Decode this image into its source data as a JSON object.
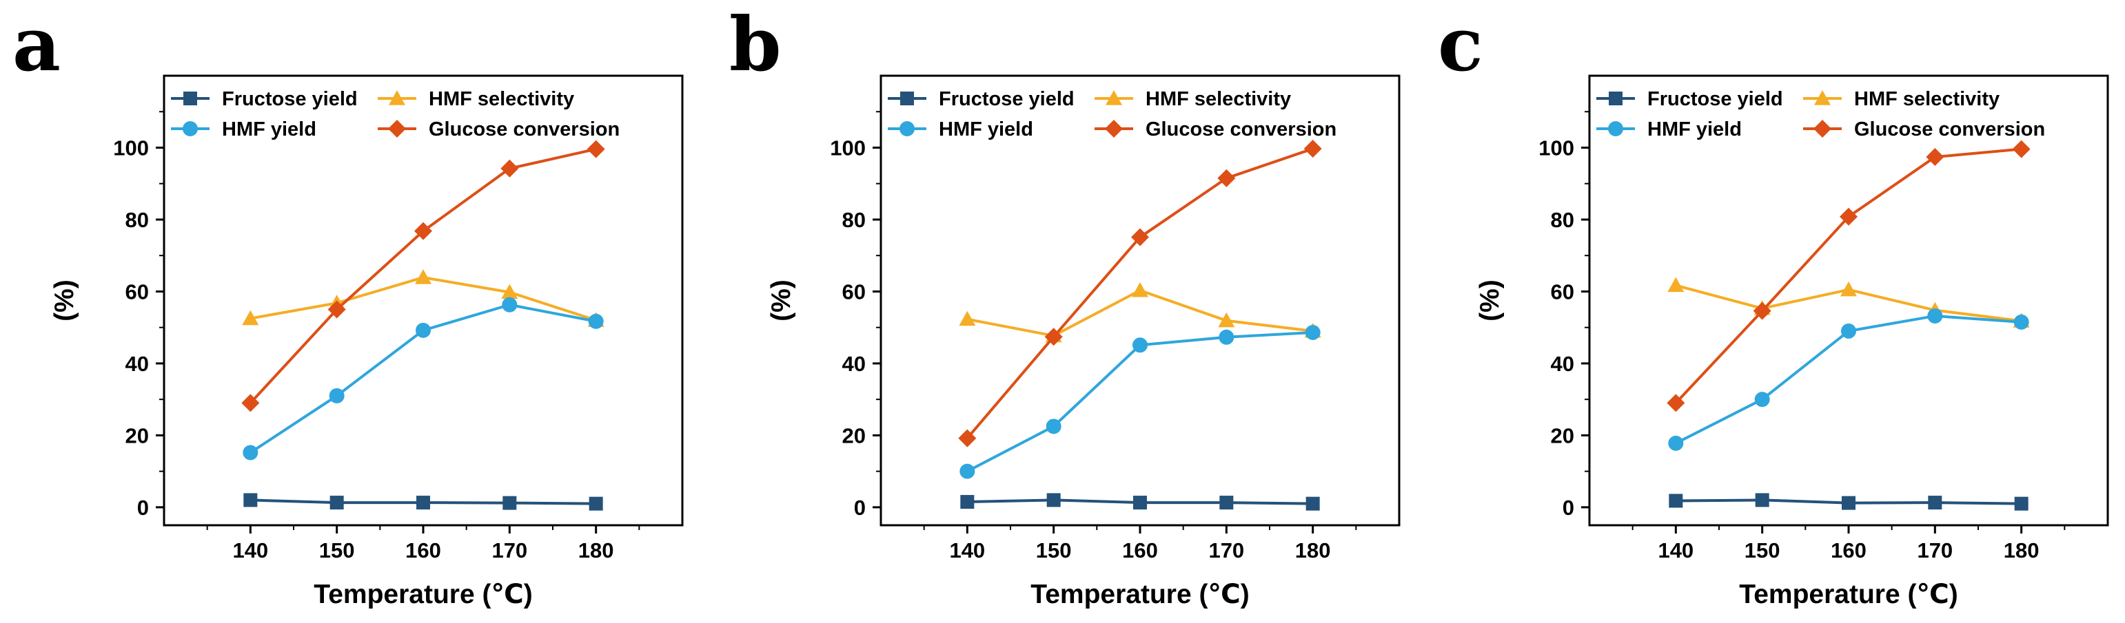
{
  "colors": {
    "Fructose yield": "#24527a",
    "HMF yield": "#2fa6dd",
    "HMF selectivity": "#f5ad25",
    "Glucose conversion": "#dd4f16"
  },
  "markers": {
    "Fructose yield": "square",
    "HMF yield": "circle",
    "HMF selectivity": "triangle",
    "Glucose conversion": "diamond"
  },
  "chart_data": [
    {
      "type": "line",
      "panel": "a",
      "xlabel": "Temperature (℃)",
      "ylabel": "(%)",
      "x": [
        140,
        150,
        160,
        170,
        180
      ],
      "xlim": [
        130,
        190
      ],
      "ylim": [
        -5,
        120
      ],
      "yticks": [
        0,
        20,
        40,
        60,
        80,
        100
      ],
      "xticks": [
        140,
        150,
        160,
        170,
        180
      ],
      "legend": "top",
      "grid": false,
      "series": [
        {
          "name": "Fructose yield",
          "values": [
            2.0,
            1.3,
            1.3,
            1.2,
            1.0
          ]
        },
        {
          "name": "HMF selectivity",
          "values": [
            52.5,
            56.8,
            63.9,
            59.8,
            52.0
          ]
        },
        {
          "name": "HMF yield",
          "values": [
            15.2,
            31.0,
            49.2,
            56.3,
            51.7
          ]
        },
        {
          "name": "Glucose conversion",
          "values": [
            29.0,
            55.0,
            76.8,
            94.2,
            99.6
          ]
        }
      ]
    },
    {
      "type": "line",
      "panel": "b",
      "xlabel": "Temperature (℃)",
      "ylabel": "(%)",
      "x": [
        140,
        150,
        160,
        170,
        180
      ],
      "xlim": [
        130,
        190
      ],
      "ylim": [
        -5,
        120
      ],
      "yticks": [
        0,
        20,
        40,
        60,
        80,
        100
      ],
      "xticks": [
        140,
        150,
        160,
        170,
        180
      ],
      "legend": "top",
      "grid": false,
      "series": [
        {
          "name": "Fructose yield",
          "values": [
            1.5,
            2.0,
            1.3,
            1.3,
            1.0
          ]
        },
        {
          "name": "HMF selectivity",
          "values": [
            52.3,
            47.7,
            60.3,
            51.9,
            49.0
          ]
        },
        {
          "name": "HMF yield",
          "values": [
            10.0,
            22.5,
            45.1,
            47.3,
            48.6
          ]
        },
        {
          "name": "Glucose conversion",
          "values": [
            19.2,
            47.4,
            75.1,
            91.5,
            99.7
          ]
        }
      ]
    },
    {
      "type": "line",
      "panel": "c",
      "xlabel": "Temperature (℃)",
      "ylabel": "(%)",
      "x": [
        140,
        150,
        160,
        170,
        180
      ],
      "xlim": [
        130,
        190
      ],
      "ylim": [
        -5,
        120
      ],
      "yticks": [
        0,
        20,
        40,
        60,
        80,
        100
      ],
      "xticks": [
        140,
        150,
        160,
        170,
        180
      ],
      "legend": "top",
      "grid": false,
      "series": [
        {
          "name": "Fructose yield",
          "values": [
            1.8,
            2.0,
            1.2,
            1.3,
            1.0
          ]
        },
        {
          "name": "HMF selectivity",
          "values": [
            61.7,
            55.3,
            60.5,
            54.8,
            51.8
          ]
        },
        {
          "name": "HMF yield",
          "values": [
            17.8,
            30.0,
            49.0,
            53.2,
            51.5
          ]
        },
        {
          "name": "Glucose conversion",
          "values": [
            29.0,
            54.6,
            80.8,
            97.4,
            99.6
          ]
        }
      ]
    }
  ]
}
